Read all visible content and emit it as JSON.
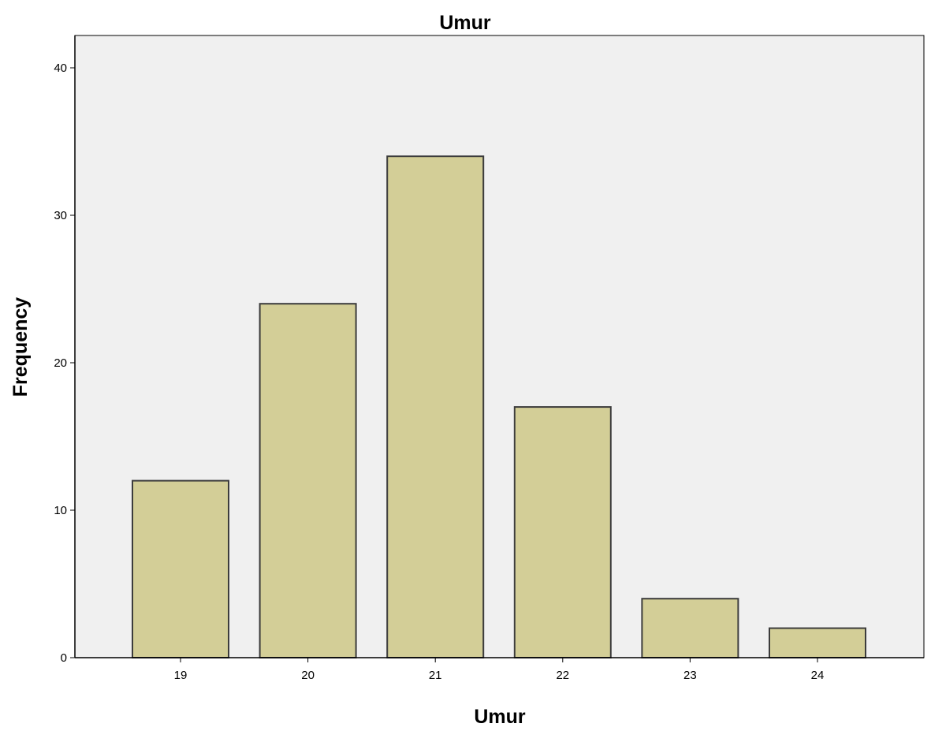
{
  "chart_data": {
    "type": "bar",
    "title": "Umur",
    "xlabel": "Umur",
    "ylabel": "Frequency",
    "categories": [
      "19",
      "20",
      "21",
      "22",
      "23",
      "24"
    ],
    "values": [
      12,
      24,
      34,
      17,
      4,
      2
    ],
    "ylim": [
      0,
      42
    ],
    "yticks": [
      "0",
      "10",
      "20",
      "30",
      "40"
    ],
    "grid": false,
    "legend": "none",
    "colors": {
      "plot_background": "#f0f0f0",
      "bar_fill": "#d3ce97",
      "bar_stroke": "#3c3c3c",
      "axis": "#000000"
    }
  }
}
